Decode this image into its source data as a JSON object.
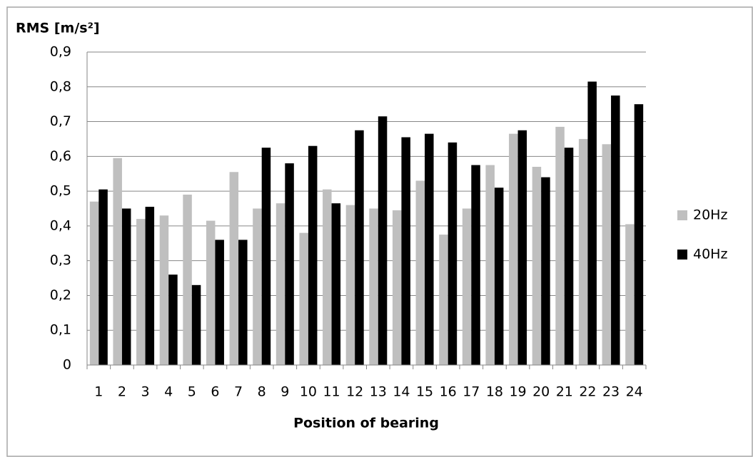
{
  "chart_data": {
    "type": "bar",
    "y_label": "RMS [m/s²]",
    "x_label": "Position of bearing",
    "categories": [
      "1",
      "2",
      "3",
      "4",
      "5",
      "6",
      "7",
      "8",
      "9",
      "10",
      "11",
      "12",
      "13",
      "14",
      "15",
      "16",
      "17",
      "18",
      "19",
      "20",
      "21",
      "22",
      "23",
      "24"
    ],
    "series": [
      {
        "name": "20Hz",
        "color": "#bfbfbf",
        "values": [
          0.47,
          0.595,
          0.42,
          0.43,
          0.49,
          0.415,
          0.555,
          0.45,
          0.465,
          0.38,
          0.505,
          0.46,
          0.45,
          0.445,
          0.53,
          0.375,
          0.45,
          0.575,
          0.665,
          0.57,
          0.685,
          0.65,
          0.635,
          0.405
        ]
      },
      {
        "name": "40Hz",
        "color": "#000000",
        "values": [
          0.505,
          0.45,
          0.455,
          0.26,
          0.23,
          0.36,
          0.36,
          0.625,
          0.58,
          0.63,
          0.465,
          0.675,
          0.715,
          0.655,
          0.665,
          0.64,
          0.575,
          0.51,
          0.675,
          0.54,
          0.625,
          0.815,
          0.775,
          0.75
        ]
      }
    ],
    "ylim": [
      0,
      0.9
    ],
    "yticks": [
      0,
      {
        "value": 0.1,
        "label": "0,1"
      },
      {
        "value": 0.2,
        "label": "0,2"
      },
      {
        "value": 0.3,
        "label": "0,3"
      },
      {
        "value": 0.4,
        "label": "0,4"
      },
      {
        "value": 0.5,
        "label": "0,5"
      },
      {
        "value": 0.6,
        "label": "0,6"
      },
      {
        "value": 0.7,
        "label": "0,7"
      },
      {
        "value": 0.8,
        "label": "0,8"
      },
      {
        "value": 0.9,
        "label": "0,9"
      }
    ],
    "grid": true,
    "legend": "right"
  }
}
